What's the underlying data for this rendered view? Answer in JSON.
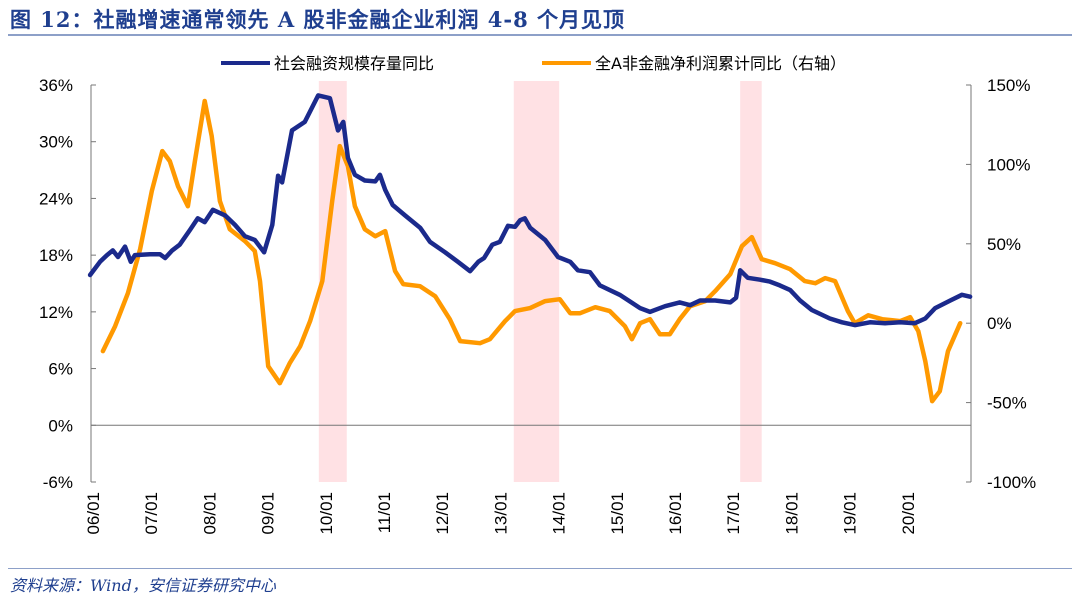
{
  "title": "图 12：社融增速通常领先 A 股非金融企业利润 4-8 个月见顶",
  "source": "资料来源：Wind，安信证券研究中心",
  "chart_data": {
    "type": "line",
    "title": "图 12：社融增速通常领先 A 股非金融企业利润 4-8 个月见顶",
    "x_unit": "decimal year",
    "x_ticks": [
      "06/01",
      "07/01",
      "08/01",
      "09/01",
      "10/01",
      "11/01",
      "12/01",
      "13/01",
      "14/01",
      "15/01",
      "16/01",
      "17/01",
      "18/01",
      "19/01",
      "20/01"
    ],
    "xlim": [
      2005.95,
      2021.07
    ],
    "y_left": {
      "ticks": [
        "36%",
        "30%",
        "24%",
        "18%",
        "12%",
        "6%",
        "0%",
        "-6%"
      ],
      "ylim": [
        -6,
        36
      ]
    },
    "y_right": {
      "ticks": [
        "150%",
        "100%",
        "50%",
        "0%",
        "-50%",
        "-100%"
      ],
      "ylim": [
        -100,
        150
      ]
    },
    "legend_position": "top-center",
    "shaded_periods": [
      [
        2009.88,
        2010.36
      ],
      [
        2013.23,
        2014.01
      ],
      [
        2017.12,
        2017.49
      ]
    ],
    "series": [
      {
        "name": "社会融资规模存量同比",
        "axis": "left",
        "color": "#1b2a8c",
        "x": [
          2005.95,
          2006.12,
          2006.24,
          2006.34,
          2006.43,
          2006.55,
          2006.65,
          2006.72,
          2006.98,
          2007.15,
          2007.24,
          2007.36,
          2007.49,
          2007.67,
          2007.8,
          2007.92,
          2008.06,
          2008.27,
          2008.44,
          2008.61,
          2008.78,
          2008.94,
          2009.08,
          2009.18,
          2009.25,
          2009.42,
          2009.64,
          2009.87,
          2010.07,
          2010.21,
          2010.3,
          2010.38,
          2010.5,
          2010.67,
          2010.85,
          2010.93,
          2011.02,
          2011.15,
          2011.36,
          2011.62,
          2011.79,
          2012.05,
          2012.27,
          2012.48,
          2012.62,
          2012.72,
          2012.86,
          2012.99,
          2013.13,
          2013.25,
          2013.34,
          2013.42,
          2013.51,
          2013.77,
          2013.99,
          2014.2,
          2014.33,
          2014.54,
          2014.71,
          2015.05,
          2015.4,
          2015.57,
          2015.83,
          2016.08,
          2016.26,
          2016.43,
          2016.69,
          2016.95,
          2017.05,
          2017.12,
          2017.25,
          2017.46,
          2017.63,
          2017.8,
          2017.98,
          2018.15,
          2018.35,
          2018.66,
          2018.87,
          2019.09,
          2019.35,
          2019.61,
          2019.87,
          2020.12,
          2020.3,
          2020.47,
          2020.73,
          2020.93,
          2021.07
        ],
        "y": [
          15.9,
          17.3,
          18.0,
          18.5,
          17.8,
          18.9,
          17.3,
          18.0,
          18.1,
          18.1,
          17.7,
          18.5,
          19.1,
          20.7,
          21.9,
          21.5,
          22.8,
          22.2,
          21.2,
          20.0,
          19.6,
          18.3,
          21.2,
          26.4,
          25.7,
          31.2,
          32.1,
          34.9,
          34.6,
          31.2,
          32.1,
          28.3,
          26.5,
          25.9,
          25.8,
          26.5,
          24.9,
          23.3,
          22.2,
          20.9,
          19.4,
          18.3,
          17.3,
          16.3,
          17.3,
          17.7,
          19.1,
          19.4,
          21.1,
          21.0,
          21.7,
          21.9,
          20.9,
          19.6,
          17.8,
          17.3,
          16.4,
          16.2,
          14.8,
          13.8,
          12.4,
          12.0,
          12.6,
          13.0,
          12.7,
          13.2,
          13.2,
          13.0,
          13.5,
          16.4,
          15.6,
          15.4,
          15.2,
          14.8,
          14.3,
          13.2,
          12.2,
          11.3,
          10.9,
          10.6,
          10.9,
          10.8,
          10.9,
          10.8,
          11.3,
          12.4,
          13.2,
          13.8,
          13.6
        ]
      },
      {
        "name": "全A非金融净利润累计同比（右轴）",
        "axis": "right",
        "color": "#ff9900",
        "x": [
          2006.17,
          2006.38,
          2006.6,
          2006.81,
          2007.01,
          2007.19,
          2007.32,
          2007.46,
          2007.63,
          2007.75,
          2007.92,
          2008.04,
          2008.18,
          2008.35,
          2008.61,
          2008.78,
          2008.87,
          2009.01,
          2009.21,
          2009.38,
          2009.56,
          2009.73,
          2009.94,
          2010.11,
          2010.24,
          2010.38,
          2010.5,
          2010.67,
          2010.85,
          2011.02,
          2011.19,
          2011.33,
          2011.62,
          2011.88,
          2012.13,
          2012.31,
          2012.65,
          2012.82,
          2013.08,
          2013.25,
          2013.51,
          2013.77,
          2014.02,
          2014.2,
          2014.37,
          2014.63,
          2014.88,
          2015.14,
          2015.26,
          2015.4,
          2015.57,
          2015.74,
          2015.91,
          2016.08,
          2016.26,
          2016.52,
          2016.69,
          2016.95,
          2017.15,
          2017.32,
          2017.49,
          2017.72,
          2017.98,
          2018.23,
          2018.41,
          2018.58,
          2018.75,
          2018.97,
          2019.09,
          2019.32,
          2019.56,
          2019.87,
          2020.04,
          2020.18,
          2020.3,
          2020.42,
          2020.55,
          2020.69,
          2020.9
        ],
        "y": [
          -17.6,
          -1.9,
          18.9,
          46.6,
          83.2,
          108.4,
          102.1,
          86.3,
          73.7,
          102.1,
          139.9,
          117.8,
          76.9,
          59.2,
          51.7,
          45.4,
          26.5,
          -27.1,
          -37.8,
          -25.2,
          -14.5,
          1.3,
          26.5,
          76.9,
          111.5,
          98.9,
          73.7,
          59.2,
          54.8,
          58.0,
          32.8,
          24.6,
          23.3,
          17.0,
          2.5,
          -11.3,
          -12.6,
          -10.1,
          1.3,
          7.6,
          9.5,
          13.9,
          15.1,
          6.3,
          6.3,
          10.1,
          7.6,
          -1.9,
          -10.1,
          0,
          2.5,
          -6.9,
          -6.9,
          2.5,
          10.7,
          13.9,
          20.2,
          30.9,
          48.5,
          54.2,
          40.3,
          37.8,
          34.0,
          26.5,
          25.2,
          28.4,
          26.5,
          7.6,
          0,
          5.0,
          2.5,
          1.3,
          3.8,
          -5.0,
          -23.9,
          -49.1,
          -42.8,
          -17.6,
          0
        ]
      }
    ]
  }
}
